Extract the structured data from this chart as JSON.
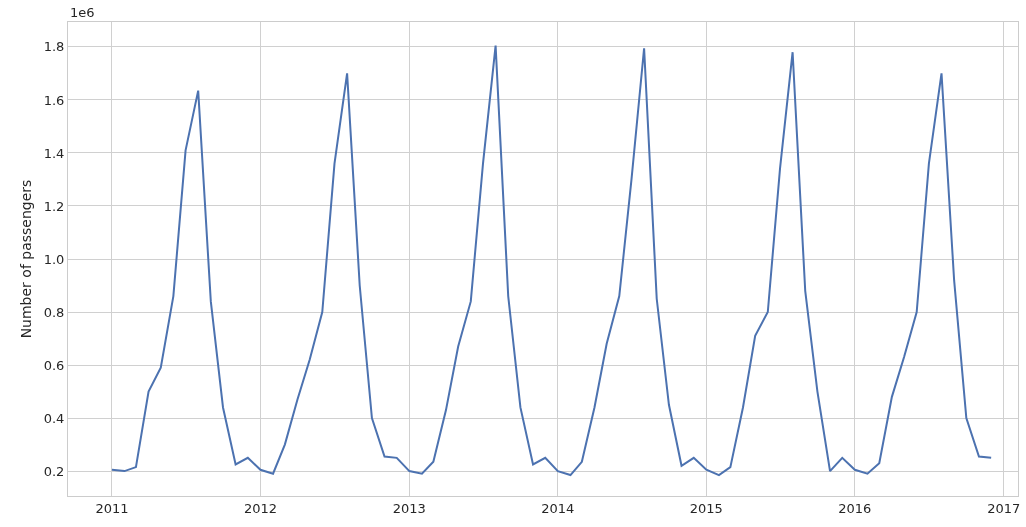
{
  "chart_data": {
    "type": "line",
    "ylabel": "Number of passengers",
    "annotations": [
      "1e6"
    ],
    "x": [
      "2011-01",
      "2011-02",
      "2011-03",
      "2011-04",
      "2011-05",
      "2011-06",
      "2011-07",
      "2011-08",
      "2011-09",
      "2011-10",
      "2011-11",
      "2011-12",
      "2012-01",
      "2012-02",
      "2012-03",
      "2012-04",
      "2012-05",
      "2012-06",
      "2012-07",
      "2012-08",
      "2012-09",
      "2012-10",
      "2012-11",
      "2012-12",
      "2013-01",
      "2013-02",
      "2013-03",
      "2013-04",
      "2013-05",
      "2013-06",
      "2013-07",
      "2013-08",
      "2013-09",
      "2013-10",
      "2013-11",
      "2013-12",
      "2014-01",
      "2014-02",
      "2014-03",
      "2014-04",
      "2014-05",
      "2014-06",
      "2014-07",
      "2014-08",
      "2014-09",
      "2014-10",
      "2014-11",
      "2014-12",
      "2015-01",
      "2015-02",
      "2015-03",
      "2015-04",
      "2015-05",
      "2015-06",
      "2015-07",
      "2015-08",
      "2015-09",
      "2015-10",
      "2015-11",
      "2015-12",
      "2016-01",
      "2016-02",
      "2016-03",
      "2016-04",
      "2016-05",
      "2016-06",
      "2016-07",
      "2016-08",
      "2016-09",
      "2016-10",
      "2016-11",
      "2016-12"
    ],
    "series": [
      {
        "color": "#4c72b0",
        "values": [
          0.205,
          0.2,
          0.215,
          0.5,
          0.59,
          0.86,
          1.41,
          1.635,
          0.84,
          0.44,
          0.225,
          0.25,
          0.205,
          0.19,
          0.3,
          0.47,
          0.62,
          0.8,
          1.36,
          1.7,
          0.9,
          0.4,
          0.255,
          0.25,
          0.2,
          0.19,
          0.235,
          0.43,
          0.67,
          0.84,
          1.36,
          1.805,
          0.86,
          0.44,
          0.225,
          0.25,
          0.2,
          0.185,
          0.235,
          0.44,
          0.68,
          0.86,
          1.3,
          1.795,
          0.85,
          0.45,
          0.22,
          0.25,
          0.205,
          0.185,
          0.215,
          0.44,
          0.71,
          0.8,
          1.34,
          1.78,
          0.88,
          0.5,
          0.2,
          0.25,
          0.205,
          0.19,
          0.23,
          0.48,
          0.63,
          0.8,
          1.36,
          1.7,
          0.92,
          0.4,
          0.255,
          0.25
        ]
      }
    ],
    "xlim": [
      "2010-09-15",
      "2017-02-05"
    ],
    "xticks": [
      {
        "value": "2011-01-01",
        "label": "2011"
      },
      {
        "value": "2012-01-01",
        "label": "2012"
      },
      {
        "value": "2013-01-01",
        "label": "2013"
      },
      {
        "value": "2014-01-01",
        "label": "2014"
      },
      {
        "value": "2015-01-01",
        "label": "2015"
      },
      {
        "value": "2016-01-01",
        "label": "2016"
      },
      {
        "value": "2017-01-01",
        "label": "2017"
      }
    ],
    "ylim": [
      0.106,
      1.894
    ],
    "yticks": [
      {
        "value": 0.2,
        "label": "0.2"
      },
      {
        "value": 0.4,
        "label": "0.4"
      },
      {
        "value": 0.6,
        "label": "0.6"
      },
      {
        "value": 0.8,
        "label": "0.8"
      },
      {
        "value": 1.0,
        "label": "1.0"
      },
      {
        "value": 1.2,
        "label": "1.2"
      },
      {
        "value": 1.4,
        "label": "1.4"
      },
      {
        "value": 1.6,
        "label": "1.6"
      },
      {
        "value": 1.8,
        "label": "1.8"
      }
    ],
    "grid": true,
    "marker": "none",
    "line_style": "solid"
  }
}
